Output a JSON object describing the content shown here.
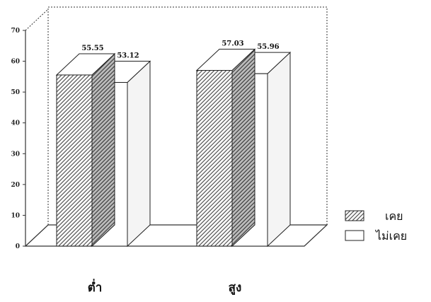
{
  "chart_data": {
    "type": "bar",
    "categories": [
      "ต่ำ",
      "สูง"
    ],
    "series": [
      {
        "name": "เคย",
        "values": [
          55.55,
          57.03
        ],
        "pattern": "hatched"
      },
      {
        "name": "ไม่เคย",
        "values": [
          53.12,
          55.96
        ],
        "pattern": "white"
      }
    ],
    "yticks": [
      0,
      10,
      20,
      30,
      40,
      50,
      60,
      70
    ],
    "ylim": [
      0,
      70
    ],
    "value_labels": [
      "55.55",
      "53.12",
      "57.03",
      "55.96"
    ],
    "three_d": true,
    "legend_position": "right",
    "grid": false,
    "colors": {
      "frame": "#333333",
      "hatch": "#555555",
      "bar_fill": "#ffffff",
      "background": "#ffffff"
    }
  }
}
